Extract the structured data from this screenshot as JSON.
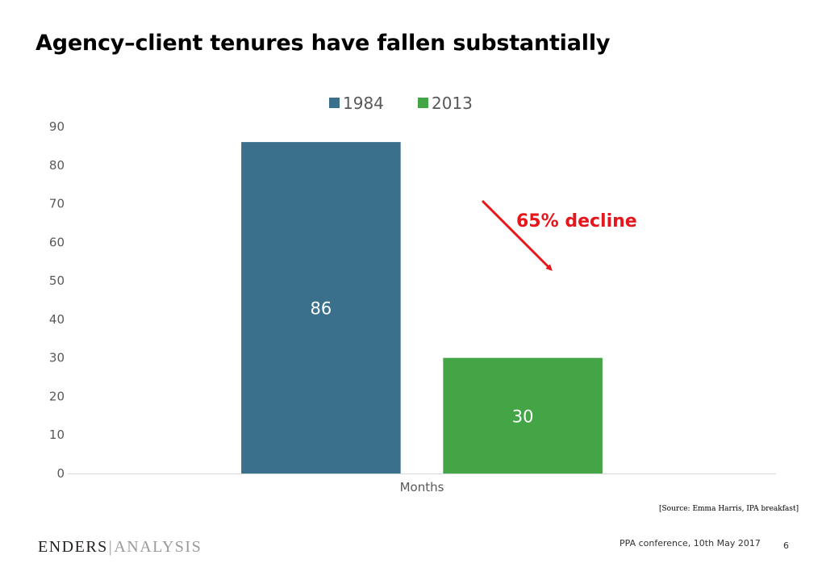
{
  "slide": {
    "title": "Agency–client tenures have fallen substantially",
    "annotation": "65% decline",
    "source": "[Source: Emma Harris, IPA breakfast]",
    "footer": "PPA conference, 10th May 2017",
    "page_number": "6",
    "logo": {
      "left": "ENDERS",
      "separator": "|",
      "right": "ANALYSIS"
    }
  },
  "chart_data": {
    "type": "bar",
    "categories": [
      "Months"
    ],
    "series": [
      {
        "name": "1984",
        "values": [
          86
        ],
        "color": "#3b708d"
      },
      {
        "name": "2013",
        "values": [
          30
        ],
        "color": "#43a545"
      }
    ],
    "ylim": [
      0,
      90
    ],
    "yticks": [
      0,
      10,
      20,
      30,
      40,
      50,
      60,
      70,
      80,
      90
    ],
    "data_labels": true,
    "legend": "top-center",
    "grid": false,
    "annotation_color": "#e5171d"
  }
}
